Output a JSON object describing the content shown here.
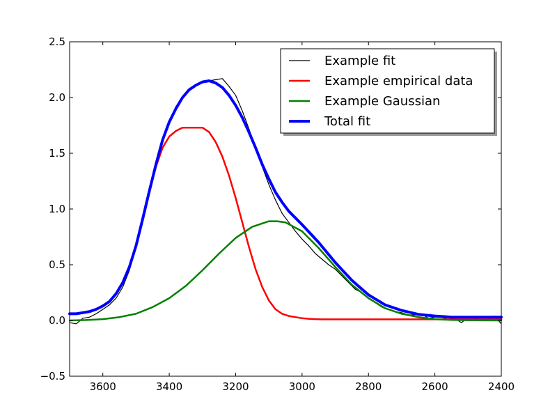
{
  "chart_data": {
    "type": "line",
    "title": "",
    "xlabel": "",
    "ylabel": "",
    "xlim": [
      3700,
      2400
    ],
    "ylim": [
      -0.5,
      2.5
    ],
    "x_reversed": true,
    "x_ticks": [
      3600,
      3400,
      3200,
      3000,
      2800,
      2600,
      2400
    ],
    "x_tick_labels": [
      "3600",
      "3400",
      "3200",
      "3000",
      "2800",
      "2600",
      "2400"
    ],
    "y_ticks": [
      -0.5,
      0.0,
      0.5,
      1.0,
      1.5,
      2.0,
      2.5
    ],
    "y_tick_labels": [
      "−0.5",
      "0.0",
      "0.5",
      "1.0",
      "1.5",
      "2.0",
      "2.5"
    ],
    "grid": false,
    "legend_position": "top-right",
    "series": [
      {
        "name": "Example fit",
        "color": "#000000",
        "x": [
          3700,
          3680,
          3660,
          3640,
          3620,
          3600,
          3580,
          3560,
          3540,
          3520,
          3500,
          3480,
          3460,
          3440,
          3420,
          3400,
          3380,
          3360,
          3340,
          3320,
          3300,
          3280,
          3260,
          3240,
          3220,
          3200,
          3180,
          3160,
          3140,
          3120,
          3100,
          3080,
          3060,
          3040,
          3020,
          3000,
          2980,
          2960,
          2940,
          2920,
          2900,
          2880,
          2860,
          2840,
          2820,
          2800,
          2780,
          2760,
          2740,
          2720,
          2700,
          2680,
          2660,
          2640,
          2620,
          2600,
          2580,
          2560,
          2540,
          2520,
          2500,
          2480,
          2460,
          2440,
          2420,
          2400
        ],
        "y": [
          -0.02,
          -0.03,
          0.02,
          0.03,
          0.06,
          0.1,
          0.14,
          0.2,
          0.3,
          0.45,
          0.66,
          0.9,
          1.16,
          1.42,
          1.62,
          1.78,
          1.92,
          2.0,
          2.06,
          2.1,
          2.14,
          2.15,
          2.16,
          2.17,
          2.1,
          2.02,
          1.88,
          1.72,
          1.55,
          1.38,
          1.22,
          1.08,
          0.96,
          0.88,
          0.8,
          0.73,
          0.67,
          0.6,
          0.55,
          0.5,
          0.46,
          0.4,
          0.34,
          0.28,
          0.25,
          0.2,
          0.16,
          0.12,
          0.1,
          0.08,
          0.07,
          0.05,
          0.05,
          0.06,
          0.02,
          0.03,
          0.03,
          0.01,
          0.02,
          -0.02,
          0.03,
          0.02,
          0.0,
          0.01,
          0.04,
          -0.03
        ]
      },
      {
        "name": "Example empirical data",
        "color": "#ff0000",
        "x": [
          3700,
          3680,
          3660,
          3640,
          3620,
          3600,
          3580,
          3560,
          3540,
          3520,
          3500,
          3480,
          3460,
          3440,
          3420,
          3400,
          3380,
          3360,
          3340,
          3320,
          3300,
          3280,
          3260,
          3240,
          3220,
          3200,
          3180,
          3160,
          3140,
          3120,
          3100,
          3080,
          3060,
          3040,
          3020,
          3000,
          2980,
          2960,
          2940,
          2920,
          2900,
          2850,
          2800,
          2750,
          2700,
          2650,
          2600,
          2550,
          2500,
          2450,
          2400
        ],
        "y": [
          0.06,
          0.06,
          0.07,
          0.08,
          0.1,
          0.13,
          0.17,
          0.24,
          0.34,
          0.48,
          0.67,
          0.9,
          1.15,
          1.38,
          1.55,
          1.65,
          1.7,
          1.73,
          1.73,
          1.73,
          1.73,
          1.69,
          1.6,
          1.47,
          1.3,
          1.1,
          0.88,
          0.66,
          0.46,
          0.3,
          0.18,
          0.1,
          0.06,
          0.04,
          0.03,
          0.02,
          0.015,
          0.012,
          0.01,
          0.01,
          0.01,
          0.01,
          0.01,
          0.01,
          0.01,
          0.01,
          0.01,
          0.01,
          0.01,
          0.01,
          0.01
        ]
      },
      {
        "name": "Example Gaussian",
        "color": "#008000",
        "x": [
          3700,
          3650,
          3600,
          3550,
          3500,
          3450,
          3400,
          3350,
          3300,
          3250,
          3200,
          3150,
          3100,
          3075,
          3050,
          3000,
          2950,
          2900,
          2850,
          2800,
          2750,
          2700,
          2650,
          2600,
          2550,
          2500,
          2450,
          2400
        ],
        "y": [
          0.0,
          0.004,
          0.012,
          0.03,
          0.06,
          0.12,
          0.2,
          0.31,
          0.45,
          0.6,
          0.74,
          0.84,
          0.89,
          0.89,
          0.88,
          0.8,
          0.65,
          0.48,
          0.32,
          0.2,
          0.11,
          0.06,
          0.03,
          0.012,
          0.005,
          0.002,
          0.001,
          0.0
        ]
      },
      {
        "name": "Total fit",
        "color": "#0000ff",
        "x": [
          3700,
          3680,
          3660,
          3640,
          3620,
          3600,
          3580,
          3560,
          3540,
          3520,
          3500,
          3480,
          3460,
          3440,
          3420,
          3400,
          3380,
          3360,
          3340,
          3320,
          3300,
          3280,
          3260,
          3240,
          3220,
          3200,
          3180,
          3160,
          3140,
          3120,
          3100,
          3080,
          3060,
          3040,
          3020,
          3000,
          2950,
          2900,
          2850,
          2800,
          2750,
          2700,
          2650,
          2600,
          2550,
          2500,
          2450,
          2400
        ],
        "y": [
          0.06,
          0.06,
          0.07,
          0.08,
          0.1,
          0.13,
          0.17,
          0.24,
          0.34,
          0.48,
          0.67,
          0.91,
          1.16,
          1.4,
          1.62,
          1.78,
          1.9,
          2.0,
          2.07,
          2.11,
          2.14,
          2.15,
          2.13,
          2.09,
          2.02,
          1.93,
          1.82,
          1.69,
          1.55,
          1.4,
          1.27,
          1.15,
          1.06,
          0.98,
          0.92,
          0.86,
          0.7,
          0.52,
          0.36,
          0.23,
          0.14,
          0.09,
          0.055,
          0.04,
          0.03,
          0.03,
          0.03,
          0.03
        ]
      }
    ]
  }
}
